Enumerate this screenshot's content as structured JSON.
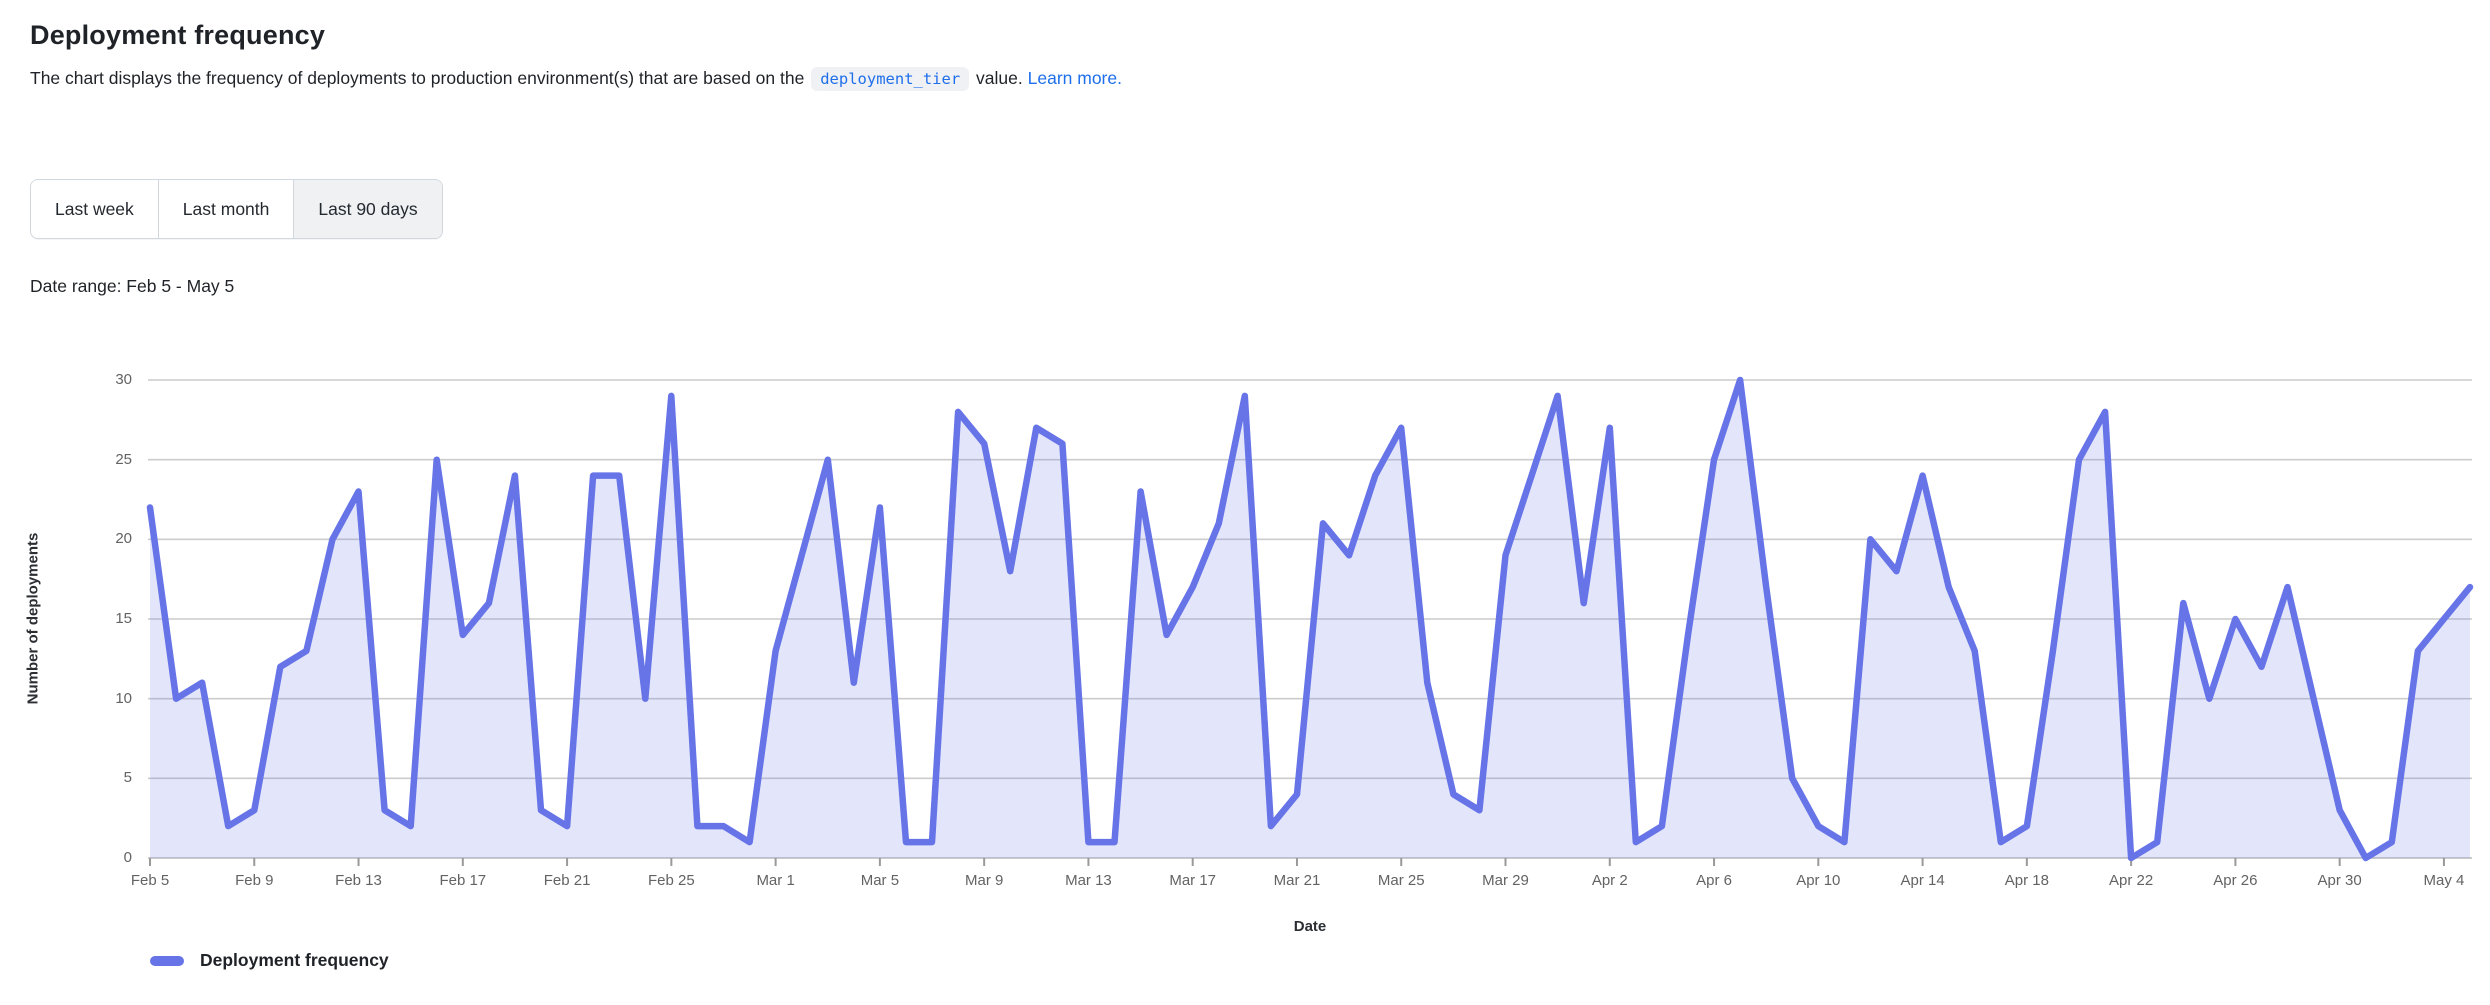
{
  "page": {
    "title": "Deployment frequency",
    "description_prefix": "The chart displays the frequency of deployments to production environment(s) that are based on the ",
    "code_token": "deployment_tier",
    "description_mid": " value. ",
    "link_text": "Learn more.",
    "date_range": "Date range: Feb 5 - May 5"
  },
  "controls": {
    "buttons": [
      {
        "label": "Last week",
        "selected": false
      },
      {
        "label": "Last month",
        "selected": false
      },
      {
        "label": "Last 90 days",
        "selected": true
      }
    ]
  },
  "chart_data": {
    "type": "area",
    "title": "Deployment frequency",
    "xlabel": "Date",
    "ylabel": "Number of deployments",
    "ylim": [
      0,
      30
    ],
    "y_ticks": [
      0,
      5,
      10,
      15,
      20,
      25,
      30
    ],
    "x_tick_interval": 4,
    "grid": true,
    "legend_position": "bottom-left",
    "legend_label": "Deployment frequency",
    "categories": [
      "Feb 5",
      "Feb 6",
      "Feb 7",
      "Feb 8",
      "Feb 9",
      "Feb 10",
      "Feb 11",
      "Feb 12",
      "Feb 13",
      "Feb 14",
      "Feb 15",
      "Feb 16",
      "Feb 17",
      "Feb 18",
      "Feb 19",
      "Feb 20",
      "Feb 21",
      "Feb 22",
      "Feb 23",
      "Feb 24",
      "Feb 25",
      "Feb 26",
      "Feb 27",
      "Feb 28",
      "Mar 1",
      "Mar 2",
      "Mar 3",
      "Mar 4",
      "Mar 5",
      "Mar 6",
      "Mar 7",
      "Mar 8",
      "Mar 9",
      "Mar 10",
      "Mar 11",
      "Mar 12",
      "Mar 13",
      "Mar 14",
      "Mar 15",
      "Mar 16",
      "Mar 17",
      "Mar 18",
      "Mar 19",
      "Mar 20",
      "Mar 21",
      "Mar 22",
      "Mar 23",
      "Mar 24",
      "Mar 25",
      "Mar 26",
      "Mar 27",
      "Mar 28",
      "Mar 29",
      "Mar 30",
      "Mar 31",
      "Apr 1",
      "Apr 2",
      "Apr 3",
      "Apr 4",
      "Apr 5",
      "Apr 6",
      "Apr 7",
      "Apr 8",
      "Apr 9",
      "Apr 10",
      "Apr 11",
      "Apr 12",
      "Apr 13",
      "Apr 14",
      "Apr 15",
      "Apr 16",
      "Apr 17",
      "Apr 18",
      "Apr 19",
      "Apr 20",
      "Apr 21",
      "Apr 22",
      "Apr 23",
      "Apr 24",
      "Apr 25",
      "Apr 26",
      "Apr 27",
      "Apr 28",
      "Apr 29",
      "Apr 30",
      "May 1",
      "May 2",
      "May 3",
      "May 4",
      "May 5"
    ],
    "values": [
      22,
      10,
      11,
      2,
      3,
      12,
      13,
      20,
      23,
      3,
      2,
      25,
      14,
      16,
      24,
      3,
      2,
      24,
      24,
      10,
      29,
      2,
      2,
      1,
      13,
      19,
      25,
      11,
      22,
      1,
      1,
      28,
      26,
      18,
      27,
      26,
      1,
      1,
      23,
      14,
      17,
      21,
      29,
      2,
      4,
      21,
      19,
      24,
      27,
      11,
      4,
      3,
      19,
      24,
      29,
      16,
      27,
      1,
      2,
      14,
      25,
      30,
      17,
      5,
      2,
      1,
      20,
      18,
      24,
      17,
      13,
      1,
      2,
      13,
      25,
      28,
      0,
      1,
      16,
      10,
      15,
      12,
      17,
      10,
      3,
      0,
      1,
      13,
      15,
      17
    ]
  },
  "colors": {
    "line": "#6674e8",
    "fill": "rgba(102,116,232,0.18)",
    "grid": "#cccccc",
    "axis_text": "#636363",
    "accent_link": "#1f6feb"
  }
}
